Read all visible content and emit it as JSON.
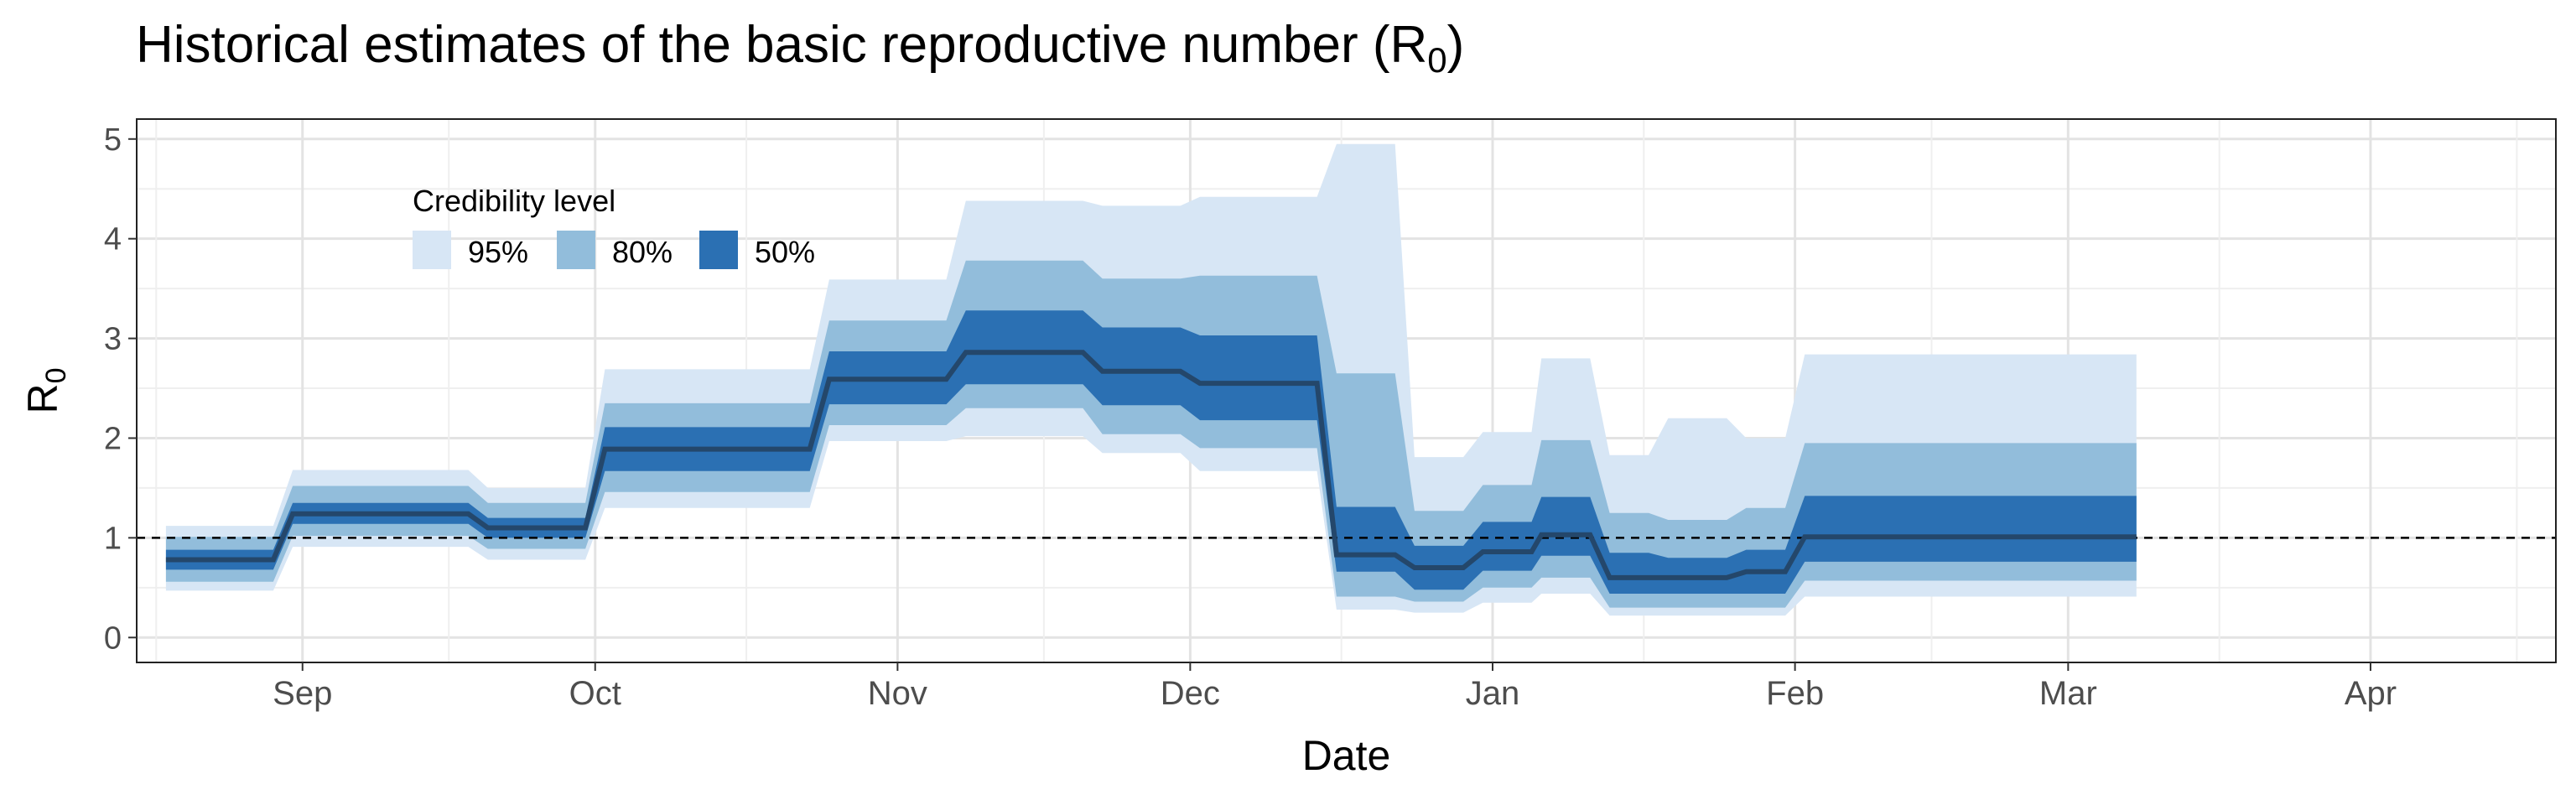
{
  "chart_data": {
    "type": "area",
    "title": "Historical estimates of the basic reproductive number (R",
    "title_subscript": "0",
    "title_suffix": ")",
    "xlabel": "Date",
    "ylabel": "R",
    "ylabel_subscript": "0",
    "xlim": [
      "2020-08-15",
      "2021-04-20"
    ],
    "ylim": [
      -0.25,
      5.2
    ],
    "y_ticks": [
      0,
      1,
      2,
      3,
      4,
      5
    ],
    "x_ticks": [
      {
        "label": "Sep",
        "date": "2020-09-01"
      },
      {
        "label": "Oct",
        "date": "2020-10-01"
      },
      {
        "label": "Nov",
        "date": "2020-11-01"
      },
      {
        "label": "Dec",
        "date": "2020-12-01"
      },
      {
        "label": "Jan",
        "date": "2021-01-01"
      },
      {
        "label": "Feb",
        "date": "2021-02-01"
      },
      {
        "label": "Mar",
        "date": "2021-03-01"
      },
      {
        "label": "Apr",
        "date": "2021-04-01"
      }
    ],
    "grid": true,
    "reference_line": {
      "y": 1,
      "style": "dashed"
    },
    "legend": {
      "title": "Credibility level",
      "placement": "top-left",
      "items": [
        {
          "label": "95%",
          "color": "#d7e6f5"
        },
        {
          "label": "80%",
          "color": "#92bddb"
        },
        {
          "label": "50%",
          "color": "#2b70b3"
        }
      ]
    },
    "median_color": "#24476b",
    "segments": [
      {
        "start": "2020-08-18",
        "end": "2020-08-29",
        "median": 0.78,
        "lo50": 0.68,
        "hi50": 0.88,
        "lo80": 0.56,
        "hi80": 1.01,
        "lo95": 0.47,
        "hi95": 1.12
      },
      {
        "start": "2020-08-31",
        "end": "2020-09-18",
        "median": 1.24,
        "lo50": 1.14,
        "hi50": 1.35,
        "lo80": 1.02,
        "hi80": 1.52,
        "lo95": 0.91,
        "hi95": 1.68
      },
      {
        "start": "2020-09-20",
        "end": "2020-09-30",
        "median": 1.1,
        "lo50": 1.0,
        "hi50": 1.2,
        "lo80": 0.89,
        "hi80": 1.35,
        "lo95": 0.78,
        "hi95": 1.5
      },
      {
        "start": "2020-10-02",
        "end": "2020-10-23",
        "median": 1.89,
        "lo50": 1.67,
        "hi50": 2.11,
        "lo80": 1.46,
        "hi80": 2.35,
        "lo95": 1.3,
        "hi95": 2.69
      },
      {
        "start": "2020-10-25",
        "end": "2020-11-06",
        "median": 2.59,
        "lo50": 2.34,
        "hi50": 2.87,
        "lo80": 2.13,
        "hi80": 3.18,
        "lo95": 1.97,
        "hi95": 3.59
      },
      {
        "start": "2020-11-08",
        "end": "2020-11-20",
        "median": 2.86,
        "lo50": 2.54,
        "hi50": 3.28,
        "lo80": 2.3,
        "hi80": 3.78,
        "lo95": 2.02,
        "hi95": 4.38
      },
      {
        "start": "2020-11-22",
        "end": "2020-11-30",
        "median": 2.67,
        "lo50": 2.33,
        "hi50": 3.11,
        "lo80": 2.04,
        "hi80": 3.6,
        "lo95": 1.85,
        "hi95": 4.33
      },
      {
        "start": "2020-12-02",
        "end": "2020-12-14",
        "median": 2.55,
        "lo50": 2.18,
        "hi50": 3.03,
        "lo80": 1.9,
        "hi80": 3.63,
        "lo95": 1.67,
        "hi95": 4.42
      },
      {
        "start": "2020-12-16",
        "end": "2020-12-22",
        "median": 0.83,
        "lo50": 0.66,
        "hi50": 1.31,
        "lo80": 0.41,
        "hi80": 2.65,
        "lo95": 0.28,
        "hi95": 4.95
      },
      {
        "start": "2020-12-24",
        "end": "2020-12-29",
        "median": 0.7,
        "lo50": 0.48,
        "hi50": 0.92,
        "lo80": 0.36,
        "hi80": 1.27,
        "lo95": 0.25,
        "hi95": 1.81
      },
      {
        "start": "2020-12-31",
        "end": "2021-01-05",
        "median": 0.86,
        "lo50": 0.67,
        "hi50": 1.16,
        "lo80": 0.5,
        "hi80": 1.53,
        "lo95": 0.35,
        "hi95": 2.06
      },
      {
        "start": "2021-01-06",
        "end": "2021-01-11",
        "median": 1.03,
        "lo50": 0.82,
        "hi50": 1.41,
        "lo80": 0.6,
        "hi80": 1.98,
        "lo95": 0.44,
        "hi95": 2.8
      },
      {
        "start": "2021-01-13",
        "end": "2021-01-17",
        "median": 0.6,
        "lo50": 0.44,
        "hi50": 0.85,
        "lo80": 0.3,
        "hi80": 1.25,
        "lo95": 0.22,
        "hi95": 1.83
      },
      {
        "start": "2021-01-19",
        "end": "2021-01-25",
        "median": 0.6,
        "lo50": 0.44,
        "hi50": 0.8,
        "lo80": 0.3,
        "hi80": 1.18,
        "lo95": 0.22,
        "hi95": 2.2
      },
      {
        "start": "2021-01-27",
        "end": "2021-01-31",
        "median": 0.66,
        "lo50": 0.44,
        "hi50": 0.88,
        "lo80": 0.3,
        "hi80": 1.3,
        "lo95": 0.22,
        "hi95": 2.0
      },
      {
        "start": "2021-02-02",
        "end": "2021-03-08",
        "median": 1.01,
        "lo50": 0.76,
        "hi50": 1.42,
        "lo80": 0.57,
        "hi80": 1.95,
        "lo95": 0.41,
        "hi95": 2.84
      }
    ]
  }
}
